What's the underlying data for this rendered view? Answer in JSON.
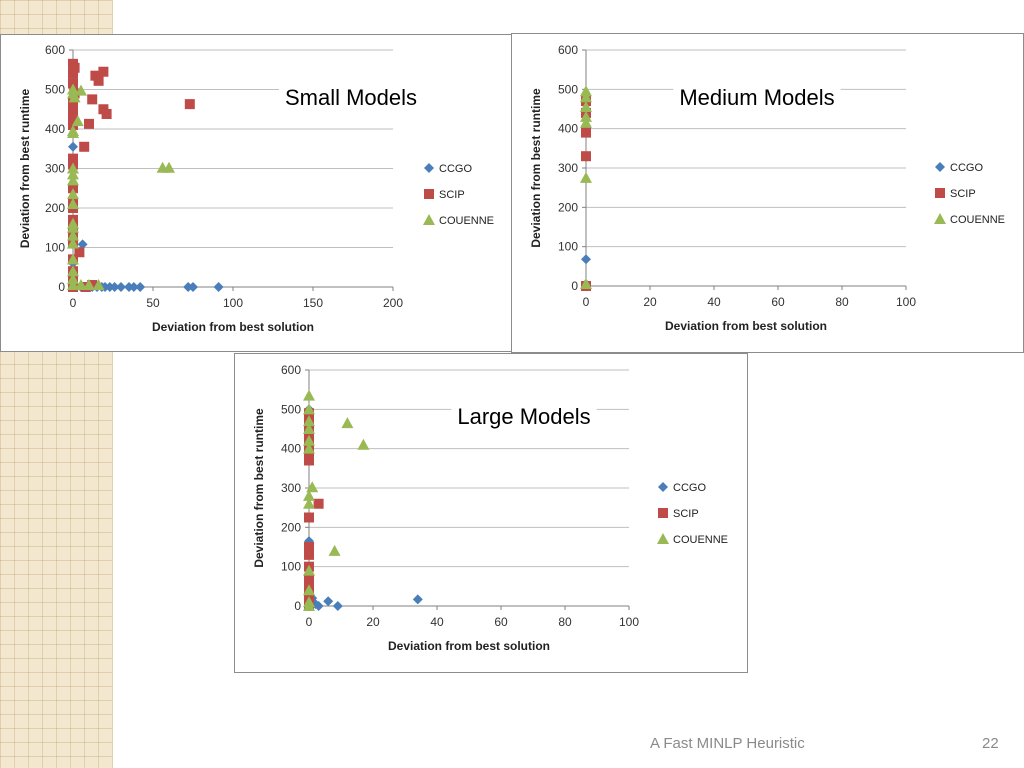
{
  "colors": {
    "CCGO": "#4a7ebb",
    "SCIP": "#be4b48",
    "COUENNE": "#98b954",
    "grid": "#bfbfbf",
    "sidebar": "#f3e8cf"
  },
  "footer": {
    "title": "A Fast MINLP Heuristic",
    "page_number": "22"
  },
  "chart_data": [
    {
      "type": "scatter",
      "title": "Small Models",
      "xlabel": "Deviation from best solution",
      "ylabel": "Deviation from best runtime",
      "xlim": [
        0,
        200
      ],
      "ylim": [
        0,
        600
      ],
      "xticks": [
        0,
        50,
        100,
        150,
        200
      ],
      "yticks": [
        0,
        100,
        200,
        300,
        400,
        500,
        600
      ],
      "grid": true,
      "legend_position": "right",
      "series": [
        {
          "name": "CCGO",
          "marker": "diamond",
          "points": [
            [
              0,
              355
            ],
            [
              6,
              108
            ],
            [
              0,
              120
            ],
            [
              0,
              60
            ],
            [
              0,
              30
            ],
            [
              0,
              10
            ],
            [
              0,
              0
            ],
            [
              2,
              0
            ],
            [
              5,
              0
            ],
            [
              8,
              0
            ],
            [
              12,
              0
            ],
            [
              15,
              0
            ],
            [
              18,
              0
            ],
            [
              20,
              0
            ],
            [
              23,
              0
            ],
            [
              26,
              0
            ],
            [
              30,
              0
            ],
            [
              35,
              0
            ],
            [
              38,
              0
            ],
            [
              42,
              0
            ],
            [
              72,
              0
            ],
            [
              75,
              0
            ],
            [
              91,
              0
            ]
          ]
        },
        {
          "name": "SCIP",
          "marker": "square",
          "points": [
            [
              0,
              565
            ],
            [
              1,
              555
            ],
            [
              0,
              540
            ],
            [
              0,
              515
            ],
            [
              1,
              490
            ],
            [
              0,
              470
            ],
            [
              0,
              450
            ],
            [
              0,
              430
            ],
            [
              0,
              410
            ],
            [
              0,
              325
            ],
            [
              0,
              310
            ],
            [
              0,
              250
            ],
            [
              0,
              215
            ],
            [
              0,
              200
            ],
            [
              0,
              170
            ],
            [
              0,
              150
            ],
            [
              0,
              130
            ],
            [
              0,
              110
            ],
            [
              4,
              88
            ],
            [
              0,
              70
            ],
            [
              0,
              40
            ],
            [
              0,
              20
            ],
            [
              0,
              10
            ],
            [
              0,
              0
            ],
            [
              7,
              355
            ],
            [
              10,
              413
            ],
            [
              12,
              475
            ],
            [
              14,
              535
            ],
            [
              16,
              522
            ],
            [
              19,
              545
            ],
            [
              19,
              450
            ],
            [
              21,
              438
            ],
            [
              73,
              463
            ],
            [
              8,
              0
            ],
            [
              12,
              5
            ]
          ]
        },
        {
          "name": "COUENNE",
          "marker": "triangle",
          "points": [
            [
              0,
              500
            ],
            [
              0,
              490
            ],
            [
              1,
              480
            ],
            [
              5,
              497
            ],
            [
              3,
              420
            ],
            [
              0,
              395
            ],
            [
              0,
              390
            ],
            [
              0,
              300
            ],
            [
              0,
              285
            ],
            [
              0,
              270
            ],
            [
              0,
              235
            ],
            [
              0,
              210
            ],
            [
              0,
              160
            ],
            [
              0,
              150
            ],
            [
              0,
              130
            ],
            [
              0,
              110
            ],
            [
              0,
              70
            ],
            [
              0,
              40
            ],
            [
              0,
              20
            ],
            [
              0,
              5
            ],
            [
              5,
              5
            ],
            [
              10,
              5
            ],
            [
              16,
              5
            ],
            [
              56,
              302
            ],
            [
              60,
              302
            ]
          ]
        }
      ]
    },
    {
      "type": "scatter",
      "title": "Medium Models",
      "xlabel": "Deviation from best solution",
      "ylabel": "Deviation from best runtime",
      "xlim": [
        0,
        100
      ],
      "ylim": [
        0,
        600
      ],
      "xticks": [
        0,
        20,
        40,
        60,
        80,
        100
      ],
      "yticks": [
        0,
        100,
        200,
        300,
        400,
        500,
        600
      ],
      "grid": true,
      "legend_position": "right",
      "series": [
        {
          "name": "CCGO",
          "marker": "diamond",
          "points": [
            [
              0,
              68
            ],
            [
              0,
              5
            ],
            [
              0,
              0
            ]
          ]
        },
        {
          "name": "SCIP",
          "marker": "square",
          "points": [
            [
              0,
              470
            ],
            [
              0,
              440
            ],
            [
              0,
              390
            ],
            [
              0,
              330
            ],
            [
              0,
              0
            ]
          ]
        },
        {
          "name": "COUENNE",
          "marker": "triangle",
          "points": [
            [
              0,
              495
            ],
            [
              0,
              480
            ],
            [
              0,
              455
            ],
            [
              0,
              430
            ],
            [
              0,
              415
            ],
            [
              0,
              275
            ],
            [
              0,
              5
            ]
          ]
        }
      ]
    },
    {
      "type": "scatter",
      "title": "Large Models",
      "xlabel": "Deviation from best solution",
      "ylabel": "Deviation from best runtime",
      "xlim": [
        0,
        100
      ],
      "ylim": [
        0,
        600
      ],
      "xticks": [
        0,
        20,
        40,
        60,
        80,
        100
      ],
      "yticks": [
        0,
        100,
        200,
        300,
        400,
        500,
        600
      ],
      "grid": true,
      "legend_position": "right",
      "series": [
        {
          "name": "CCGO",
          "marker": "diamond",
          "points": [
            [
              0,
              500
            ],
            [
              0,
              165
            ],
            [
              1,
              20
            ],
            [
              2,
              5
            ],
            [
              3,
              0
            ],
            [
              6,
              12
            ],
            [
              9,
              0
            ],
            [
              34,
              17
            ],
            [
              0,
              0
            ]
          ]
        },
        {
          "name": "SCIP",
          "marker": "square",
          "points": [
            [
              0,
              490
            ],
            [
              0,
              470
            ],
            [
              0,
              450
            ],
            [
              0,
              430
            ],
            [
              0,
              410
            ],
            [
              0,
              390
            ],
            [
              0,
              370
            ],
            [
              3,
              260
            ],
            [
              0,
              225
            ],
            [
              0,
              150
            ],
            [
              0,
              130
            ],
            [
              0,
              100
            ],
            [
              0,
              70
            ],
            [
              0,
              50
            ],
            [
              0,
              30
            ],
            [
              0,
              10
            ],
            [
              0,
              0
            ]
          ]
        },
        {
          "name": "COUENNE",
          "marker": "triangle",
          "points": [
            [
              0,
              535
            ],
            [
              0,
              500
            ],
            [
              0,
              470
            ],
            [
              0,
              450
            ],
            [
              0,
              420
            ],
            [
              0,
              400
            ],
            [
              12,
              465
            ],
            [
              17,
              410
            ],
            [
              1,
              302
            ],
            [
              0,
              280
            ],
            [
              0,
              260
            ],
            [
              8,
              140
            ],
            [
              0,
              90
            ],
            [
              0,
              40
            ],
            [
              0,
              10
            ],
            [
              0,
              0
            ]
          ]
        }
      ]
    }
  ]
}
